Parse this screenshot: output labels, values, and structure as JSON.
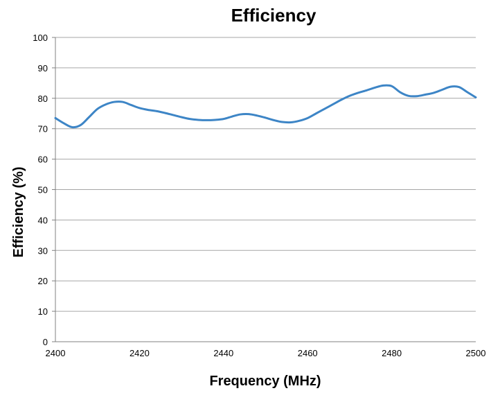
{
  "chart_data": {
    "type": "line",
    "title": "Efficiency",
    "xlabel": "Frequency (MHz)",
    "ylabel": "Efficiency (%)",
    "xlim": [
      2400,
      2500
    ],
    "ylim": [
      0,
      100
    ],
    "x_ticks": [
      2400,
      2420,
      2440,
      2460,
      2480,
      2500
    ],
    "y_ticks": [
      0,
      10,
      20,
      30,
      40,
      50,
      60,
      70,
      80,
      90,
      100
    ],
    "grid": true,
    "legend": "none",
    "series": [
      {
        "color": "#3d85c6",
        "x": [
          2400,
          2402,
          2404,
          2406,
          2408,
          2410,
          2412,
          2414,
          2416,
          2418,
          2420,
          2422,
          2424,
          2426,
          2428,
          2430,
          2432,
          2434,
          2436,
          2438,
          2440,
          2442,
          2444,
          2446,
          2448,
          2450,
          2452,
          2454,
          2456,
          2458,
          2460,
          2462,
          2464,
          2466,
          2468,
          2470,
          2472,
          2474,
          2476,
          2478,
          2480,
          2482,
          2484,
          2486,
          2488,
          2490,
          2492,
          2494,
          2496,
          2498,
          2500
        ],
        "y": [
          73.5,
          71.8,
          70.5,
          71.2,
          73.8,
          76.5,
          78.0,
          78.8,
          78.8,
          77.8,
          76.8,
          76.2,
          75.8,
          75.2,
          74.5,
          73.8,
          73.2,
          72.9,
          72.8,
          72.9,
          73.2,
          74.0,
          74.7,
          74.8,
          74.3,
          73.6,
          72.8,
          72.2,
          72.1,
          72.6,
          73.5,
          75.0,
          76.5,
          78.0,
          79.5,
          80.8,
          81.8,
          82.6,
          83.5,
          84.2,
          84.0,
          82.0,
          80.8,
          80.7,
          81.2,
          81.8,
          82.8,
          83.8,
          83.7,
          82.0,
          80.3
        ]
      }
    ]
  }
}
